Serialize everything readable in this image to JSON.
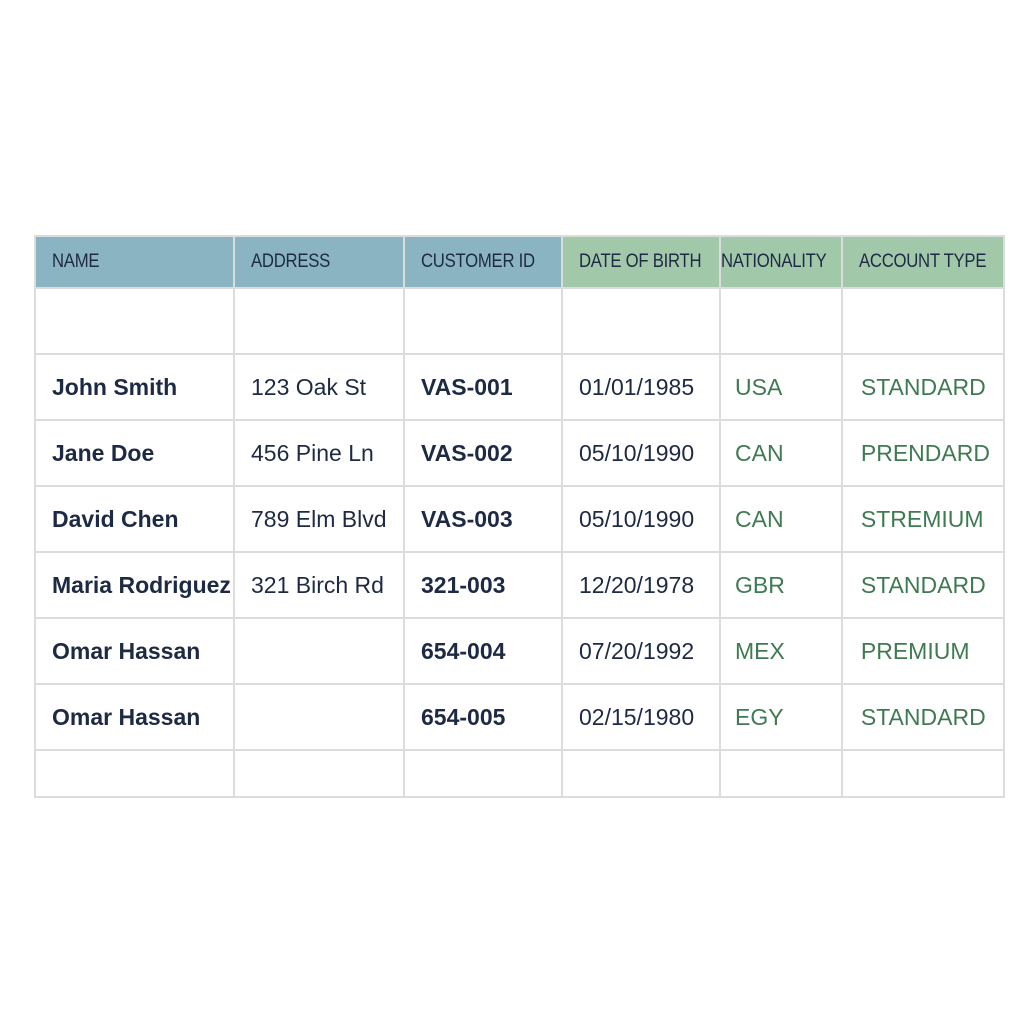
{
  "table": {
    "headers": [
      "NAME",
      "ADDRESS",
      "CUSTOMER ID",
      "DATE OF BIRTH",
      "NATIONALITY",
      "ACCOUNT TYPE"
    ],
    "rows": [
      [
        "John Smith",
        "123 Oak St",
        "VAS-001",
        "01/01/1985",
        "USA",
        "STANDARD"
      ],
      [
        "Jane Doe",
        "456 Pine Ln",
        "VAS-002",
        "05/10/1990",
        "CAN",
        "PRENDARD"
      ],
      [
        "David Chen",
        "789 Elm Blvd",
        "VAS-003",
        "05/10/1990",
        "CAN",
        "STREMIUM"
      ],
      [
        "Maria Rodriguez",
        "321 Birch Rd",
        "321-003",
        "12/20/1978",
        "GBR",
        "STANDARD"
      ],
      [
        "Omar Hassan",
        "",
        "654-004",
        "07/20/1992",
        "MEX",
        "PREMIUM"
      ],
      [
        "Omar Hassan",
        "",
        "654-005",
        "02/15/1980",
        "EGY",
        "STANDARD"
      ]
    ],
    "colors": {
      "header_blue": "#8ab4c1",
      "header_green": "#a2c8aa",
      "text_dark": "#1e2a44",
      "text_green": "#3f7a52"
    }
  }
}
